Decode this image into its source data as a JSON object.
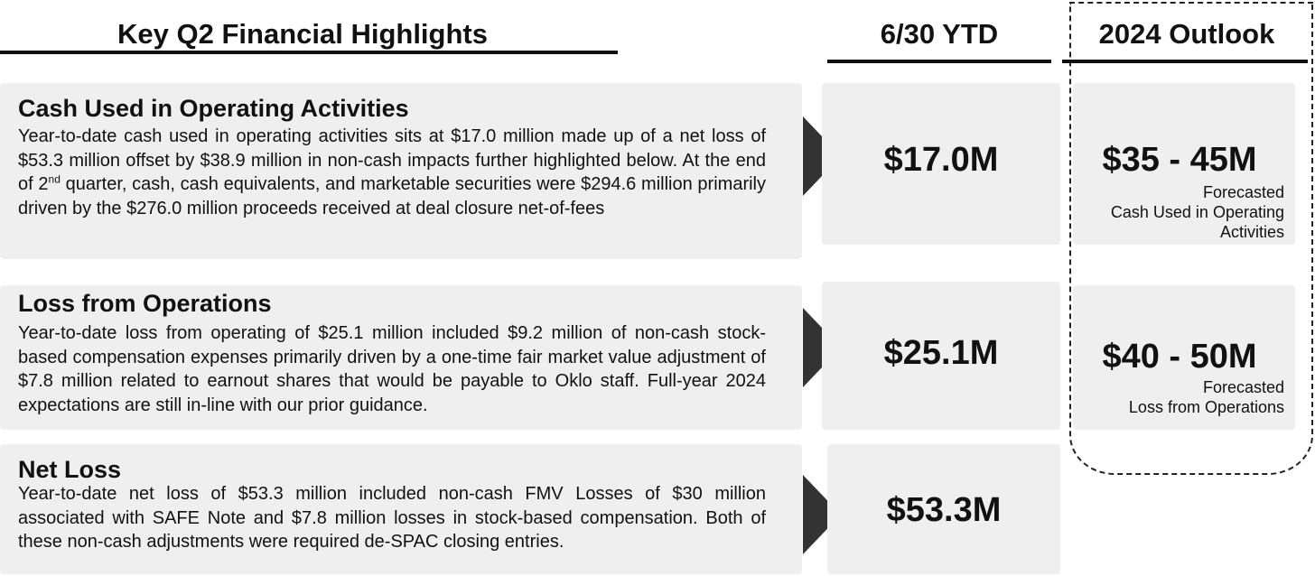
{
  "header": {
    "title": "Key Q2 Financial Highlights",
    "ytd": "6/30 YTD",
    "outlook": "2024 Outlook"
  },
  "colors": {
    "panel": "#efefef",
    "arrow": "#333333",
    "text": "#111111"
  },
  "sections": [
    {
      "title": "Cash Used in Operating Activities",
      "body_pre": "Year-to-date cash used in operating activities sits at $17.0 million made up of a net loss of $53.3 million offset by $38.9 million in non-cash impacts further highlighted below. At the end of 2",
      "body_sup": "nd",
      "body_post": " quarter, cash, cash equivalents, and marketable securities were $294.6 million primarily driven by the $276.0 million proceeds received at deal closure net-of-fees",
      "ytd_value": "$17.0M",
      "outlook_value": "$35 - 45M",
      "outlook_note_1": "Forecasted",
      "outlook_note_2": "Cash Used in Operating",
      "outlook_note_3": "Activities"
    },
    {
      "title": "Loss from Operations",
      "body": "Year-to-date loss from operating of $25.1 million included $9.2 million of non-cash stock-based compensation expenses primarily driven by a one-time fair market value adjustment of $7.8 million related to earnout shares that would be payable to Oklo staff.  Full-year 2024 expectations are still in-line with our prior guidance.",
      "ytd_value": "$25.1M",
      "outlook_value": "$40 - 50M",
      "outlook_note_1": "Forecasted",
      "outlook_note_2": "Loss from Operations"
    },
    {
      "title": "Net Loss",
      "body": "Year-to-date net loss of $53.3 million included non-cash FMV Losses of  $30 million associated with SAFE Note and $7.8 million losses in stock-based compensation. Both of these non-cash adjustments were required de-SPAC closing entries.",
      "ytd_value": "$53.3M"
    }
  ]
}
